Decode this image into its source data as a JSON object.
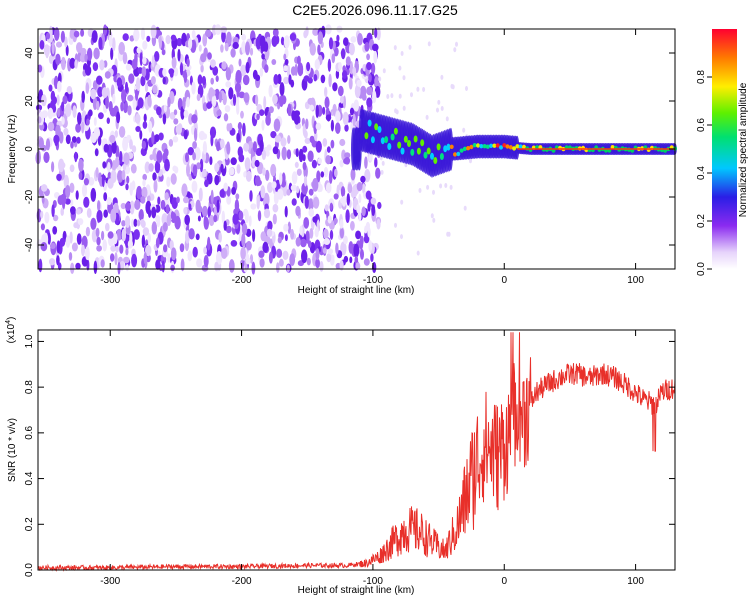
{
  "title": "C2E5.2026.096.11.17.G25",
  "chart_data": [
    {
      "type": "heatmap",
      "xlabel": "Height of straight line (km)",
      "ylabel": "Frequency (Hz)",
      "xlim": [
        -355,
        130
      ],
      "ylim": [
        -50,
        50
      ],
      "xticks": [
        -300,
        -200,
        -100,
        0,
        100
      ],
      "yticks": [
        -40,
        -20,
        0,
        20,
        40
      ],
      "colorbar": {
        "label": "Normalized spectral amplitude",
        "range": [
          0.0,
          1.0
        ],
        "ticks": [
          "0.0",
          "0.2",
          "0.4",
          "0.6",
          "0.8"
        ],
        "colormap": "white-purple-blue-cyan-green-yellow-red"
      },
      "description_series": [
        {
          "name": "noise scatter region",
          "x_range": [
            -355,
            -95
          ],
          "freq_range": [
            -50,
            50
          ]
        },
        {
          "name": "signal trace",
          "x": [
            -110,
            -90,
            -70,
            -55,
            -40,
            -20,
            0,
            20,
            50,
            100,
            130
          ],
          "y": [
            8,
            5,
            2,
            -3,
            0,
            1,
            1,
            0,
            0,
            0,
            0
          ]
        }
      ]
    },
    {
      "type": "line",
      "xlabel": "Height of straight line (km)",
      "ylabel": "SNR (10 * v/v)",
      "y_multiplier": "(x10^4)",
      "y_multiplier_base": "(x10",
      "y_multiplier_exp": "4",
      "y_multiplier_close": ")",
      "xlim": [
        -355,
        130
      ],
      "ylim": [
        0,
        1.05
      ],
      "xticks": [
        -300,
        -200,
        -100,
        0,
        100
      ],
      "yticks": [
        "0.0",
        "0.2",
        "0.4",
        "0.6",
        "0.8",
        "1.0"
      ],
      "series": [
        {
          "color": "#e8302a",
          "x": [
            -355,
            -300,
            -250,
            -200,
            -150,
            -120,
            -105,
            -95,
            -85,
            -75,
            -65,
            -55,
            -45,
            -35,
            -25,
            -15,
            -5,
            5,
            10,
            15,
            25,
            35,
            45,
            55,
            65,
            75,
            85,
            95,
            105,
            115,
            120,
            130
          ],
          "y": [
            0.01,
            0.01,
            0.015,
            0.015,
            0.02,
            0.02,
            0.03,
            0.06,
            0.12,
            0.18,
            0.17,
            0.12,
            0.08,
            0.2,
            0.4,
            0.55,
            0.5,
            0.6,
            0.75,
            0.68,
            0.78,
            0.82,
            0.85,
            0.86,
            0.84,
            0.86,
            0.84,
            0.8,
            0.75,
            0.72,
            0.78,
            0.8
          ]
        }
      ]
    }
  ]
}
